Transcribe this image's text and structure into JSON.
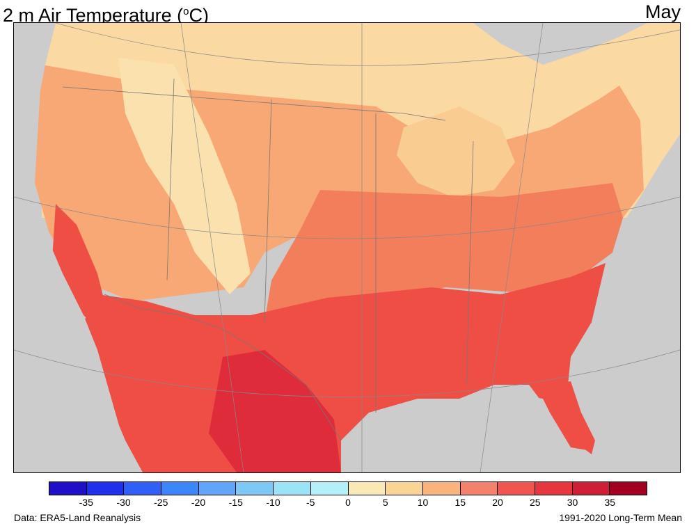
{
  "header": {
    "title_main": "2 m Air Temperature (",
    "title_sup": "o",
    "title_end": "C)",
    "month": "May"
  },
  "footer": {
    "source": "Data: ERA5-Land Reanalysis",
    "period": "1991-2020 Long-Term Mean"
  },
  "colorbar": {
    "colors": [
      "#1f0fc9",
      "#1f2fee",
      "#2e5ff7",
      "#3b86fa",
      "#5fa6fa",
      "#7cc9f6",
      "#9be3f7",
      "#b4f0fa",
      "#fbe9b5",
      "#f9d493",
      "#f8b47b",
      "#f4826b",
      "#f0564f",
      "#e8363e",
      "#cf1f37",
      "#a30021"
    ],
    "ticks": [
      "-35",
      "-30",
      "-25",
      "-20",
      "-15",
      "-10",
      "-5",
      "0",
      "5",
      "10",
      "15",
      "20",
      "25",
      "30",
      "35"
    ]
  },
  "map": {
    "ocean_color": "#cccccc",
    "land_colors": {
      "cool": "#fbe1ad",
      "mild": "#f9cc91",
      "warm15": "#f7a874",
      "warm20": "#f27e5c",
      "hot25": "#ef4e45",
      "hot30": "#df2c3a"
    }
  }
}
